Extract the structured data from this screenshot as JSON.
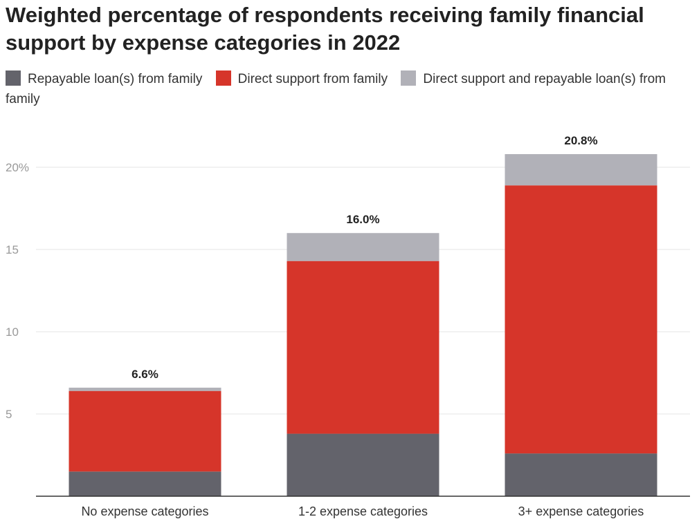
{
  "chart_data": {
    "type": "bar",
    "stacked": true,
    "title": "Weighted percentage of respondents receiving family financial support by expense categories in 2022",
    "xlabel": "",
    "ylabel": "",
    "categories": [
      "No expense categories",
      "1-2 expense categories",
      "3+ expense categories"
    ],
    "series": [
      {
        "name": "Repayable loan(s) from family",
        "color": "#63636b",
        "values": [
          1.5,
          3.8,
          2.6
        ]
      },
      {
        "name": "Direct support from family",
        "color": "#d6352a",
        "values": [
          4.9,
          10.5,
          16.3
        ]
      },
      {
        "name": "Direct support and repayable loan(s) from family",
        "color": "#b1b1b8",
        "values": [
          0.2,
          1.7,
          1.9
        ]
      }
    ],
    "totals": [
      "6.6%",
      "16.0%",
      "20.8%"
    ],
    "yticks": [
      {
        "value": 5,
        "label": "5"
      },
      {
        "value": 10,
        "label": "10"
      },
      {
        "value": 15,
        "label": "15"
      },
      {
        "value": 20,
        "label": "20%"
      }
    ],
    "ylim": [
      0,
      20.8
    ],
    "grid": true,
    "legend_position": "top"
  }
}
